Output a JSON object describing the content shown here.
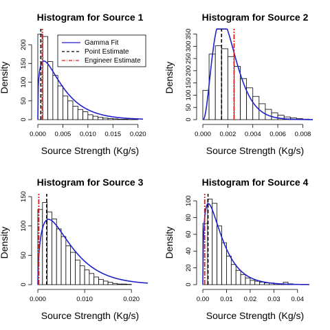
{
  "figure": {
    "colors": {
      "fit": "#1f1fcc",
      "point": "#000000",
      "engineer": "#e01b1b",
      "bar_fill": "#ffffff",
      "bar_stroke": "#000000"
    },
    "legend": {
      "entries": [
        {
          "label": "Gamma Fit",
          "style": "solid",
          "color": "#1f1fcc"
        },
        {
          "label": "Point Estimate",
          "style": "dashed",
          "color": "#000000"
        },
        {
          "label": "Engineer Estimate",
          "style": "dashdot",
          "color": "#e01b1b"
        }
      ]
    }
  },
  "chart_data": [
    {
      "type": "bar",
      "title": "Histogram for Source 1",
      "xlabel": "Source Strength (Kg/s)",
      "ylabel": "Density",
      "xlim": [
        0,
        0.021
      ],
      "ylim": [
        0,
        235
      ],
      "xticks": [
        "0.000",
        "0.005",
        "0.010",
        "0.015",
        "0.020"
      ],
      "xtick_values": [
        0,
        0.005,
        0.01,
        0.015,
        0.02
      ],
      "yticks": [
        "0",
        "50",
        "100",
        "150",
        "200"
      ],
      "ytick_values": [
        0,
        50,
        100,
        150,
        200
      ],
      "bin_start": 0,
      "bin_width": 0.001,
      "values": [
        228,
        222,
        155,
        118,
        90,
        63,
        50,
        36,
        27,
        21,
        13,
        9,
        6,
        4,
        3,
        2,
        1,
        1,
        0.5,
        0.5
      ],
      "fit": {
        "shape": 1.35,
        "scale": 0.0035,
        "x_end": 0.021
      },
      "point_estimate": 0.0006,
      "engineer_estimate": 0.0009,
      "legend_position": "top-right"
    },
    {
      "type": "bar",
      "title": "Histogram for Source 2",
      "xlabel": "Source Strength (Kg/s)",
      "ylabel": "Density",
      "xlim": [
        0,
        0.0088
      ],
      "ylim": [
        0,
        360
      ],
      "xticks": [
        "0.000",
        "0.002",
        "0.004",
        "0.006",
        "0.008"
      ],
      "xtick_values": [
        0,
        0.002,
        0.004,
        0.006,
        0.008
      ],
      "yticks": [
        "0",
        "50",
        "100",
        "150",
        "200",
        "250",
        "300",
        "350"
      ],
      "ytick_values": [
        0,
        50,
        100,
        150,
        200,
        250,
        300,
        350
      ],
      "bin_start": 0,
      "bin_width": 0.0005,
      "values": [
        120,
        268,
        302,
        290,
        258,
        218,
        168,
        130,
        95,
        65,
        42,
        28,
        18,
        11,
        7,
        4,
        2
      ],
      "fit": {
        "shape": 3.5,
        "scale": 0.000595,
        "x_end": 0.0088
      },
      "point_estimate": 0.0015,
      "engineer_estimate": 0.0025
    },
    {
      "type": "bar",
      "title": "Histogram for Source 3",
      "xlabel": "Source Strength (Kg/s)",
      "ylabel": "Density",
      "xlim": [
        0,
        0.0235
      ],
      "ylim": [
        0,
        150
      ],
      "xticks": [
        "0.000",
        "0.010",
        "0.020"
      ],
      "xtick_values": [
        0,
        0.01,
        0.02
      ],
      "yticks": [
        "0",
        "50",
        "100",
        "150"
      ],
      "ytick_values": [
        0,
        50,
        100,
        150
      ],
      "bin_start": 0,
      "bin_width": 0.001,
      "values": [
        128,
        140,
        124,
        112,
        95,
        82,
        66,
        55,
        42,
        32,
        25,
        19,
        13,
        9,
        6,
        4,
        2,
        1,
        1,
        0.5
      ],
      "fit": {
        "shape": 1.55,
        "scale": 0.0042,
        "x_end": 0.0235
      },
      "point_estimate": 0.0019,
      "engineer_estimate": 0.0002
    },
    {
      "type": "bar",
      "title": "Histogram for Source 4",
      "xlabel": "Source Strength (Kg/s)",
      "ylabel": "Density",
      "xlim": [
        0,
        0.045
      ],
      "ylim": [
        0,
        105
      ],
      "xticks": [
        "0.00",
        "0.01",
        "0.02",
        "0.03",
        "0.04"
      ],
      "xtick_values": [
        0,
        0.01,
        0.02,
        0.03,
        0.04
      ],
      "yticks": [
        "0",
        "20",
        "40",
        "60",
        "80",
        "100"
      ],
      "ytick_values": [
        0,
        20,
        40,
        60,
        80,
        100
      ],
      "bin_start": 0,
      "bin_width": 0.002,
      "values": [
        73,
        102,
        97,
        70,
        50,
        34,
        24,
        17,
        12,
        8,
        5,
        4,
        3,
        2,
        2,
        1,
        1,
        3,
        1,
        0.5
      ],
      "fit": {
        "shape": 1.45,
        "scale": 0.0052,
        "x_end": 0.045
      },
      "point_estimate": 0.0022,
      "engineer_estimate": 0.0008
    }
  ]
}
